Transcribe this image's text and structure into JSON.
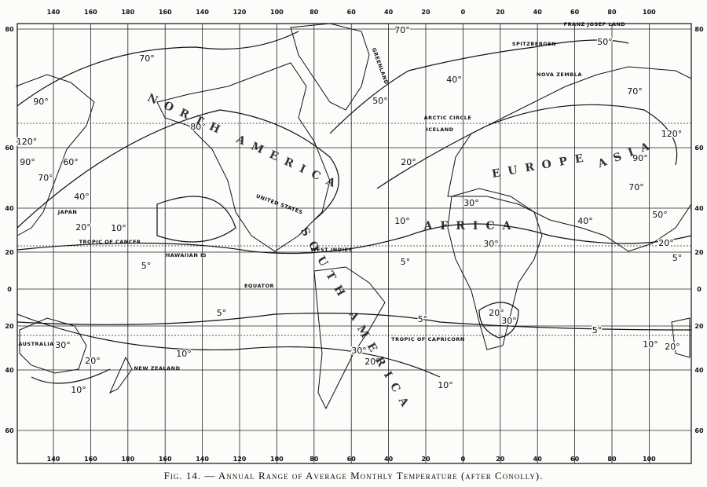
{
  "map": {
    "longitudes": [
      140,
      160,
      180,
      160,
      140,
      120,
      100,
      80,
      60,
      40,
      20,
      0,
      20,
      40,
      60,
      80,
      100
    ],
    "latitudes": [
      80,
      60,
      40,
      20,
      0,
      20,
      40,
      60
    ],
    "isotherm_labels": [
      "90°",
      "120°",
      "90°",
      "70°",
      "60°",
      "40°",
      "70°",
      "20°",
      "10°",
      "5°",
      "80°",
      "70°",
      "50°",
      "40°",
      "50°",
      "20°",
      "70°",
      "120°",
      "90°",
      "70°",
      "50°",
      "40°",
      "30°",
      "30°",
      "10°",
      "5°",
      "20°",
      "5°",
      "5°",
      "5°",
      "10°",
      "20°",
      "10°",
      "30°",
      "30°",
      "20°",
      "10°",
      "20°",
      "30°",
      "5°",
      "10°",
      "20°"
    ],
    "places": [
      "FRANZ JOSEF LAND",
      "SPITZBERGEN",
      "NOVA ZEMBLA",
      "GREENLAND",
      "ARCTIC CIRCLE",
      "ICELAND",
      "TROPIC OF CANCER",
      "HAWAIIAN IS",
      "WEST INDIES",
      "EQUATOR",
      "TROPIC OF CAPRICORN",
      "JAPAN",
      "AUSTRALIA",
      "NEW ZEALAND",
      "UNITED STATES"
    ],
    "regions": [
      "NORTH AMERICA",
      "SOUTH AMERICA",
      "EUROPE",
      "ASIA",
      "AFRICA"
    ]
  },
  "caption": "Fig. 14. — Annual Range of Average Monthly Temperature (after Conolly)."
}
